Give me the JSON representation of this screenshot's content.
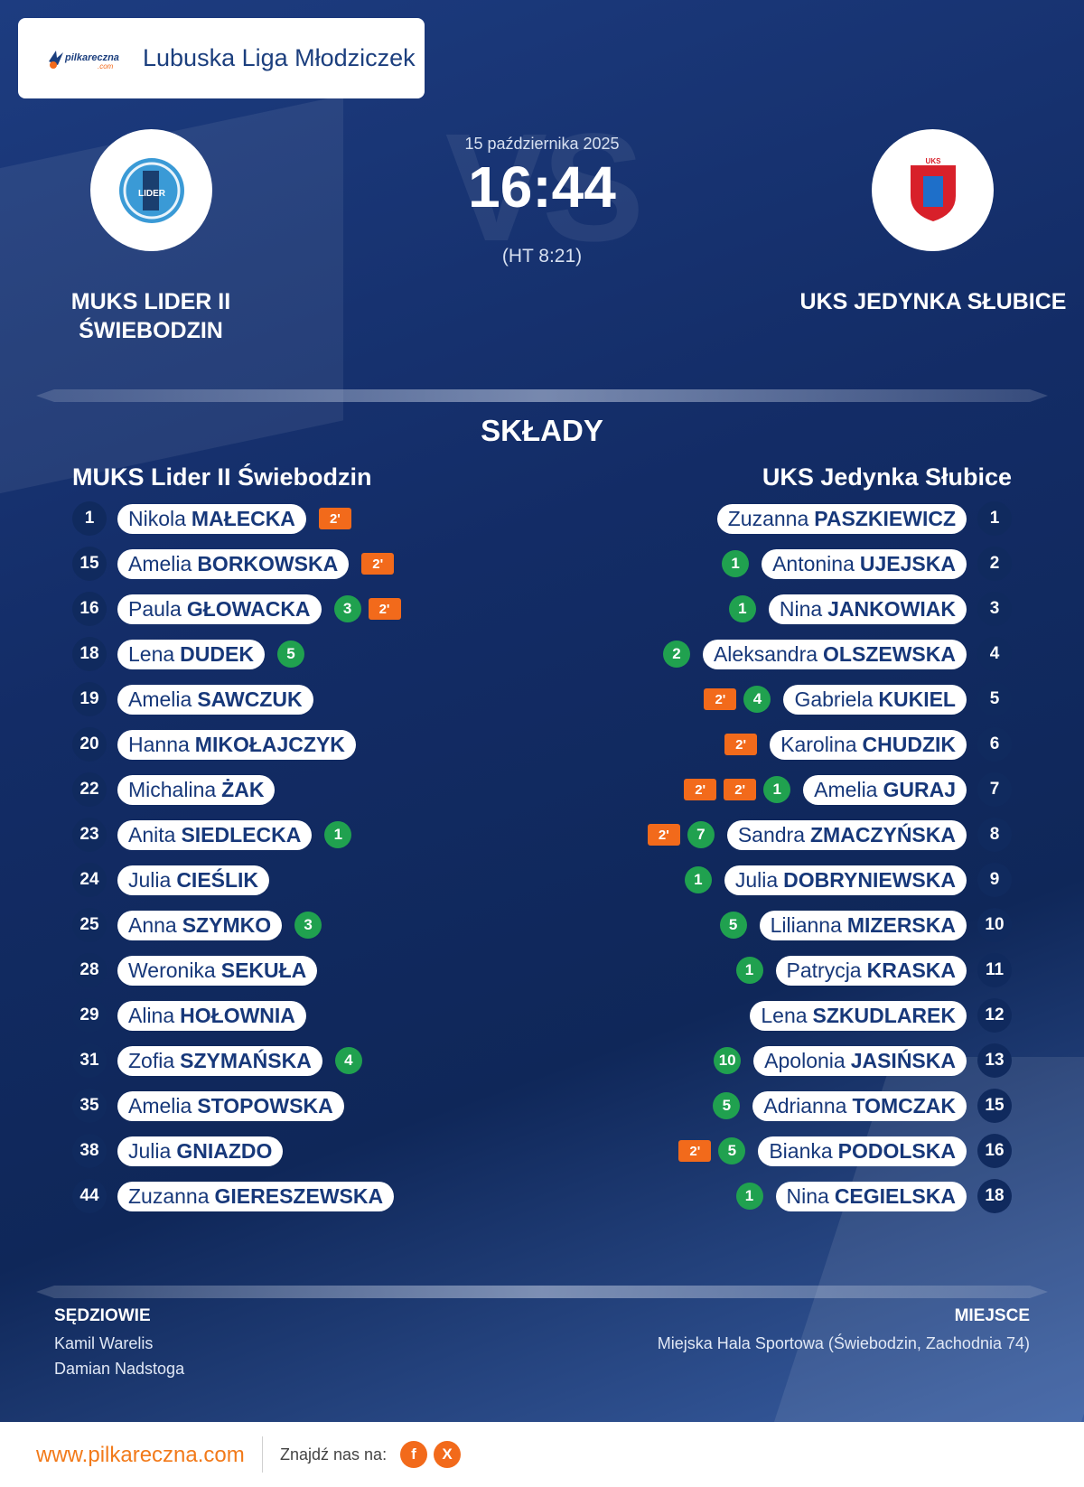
{
  "header": {
    "league": "Lubuska Liga Młodziczek",
    "logo_text": "pilkareczna",
    "logo_sub": ".com"
  },
  "match": {
    "date": "15 października 2025",
    "vs_text": "VS",
    "score": "16:44",
    "halftime": "(HT 8:21)",
    "home_team": "MUKS LIDER II ŚWIEBODZIN",
    "away_team": "UKS JEDYNKA SŁUBICE",
    "home_crest_text": "LIDER",
    "away_crest_text": "UKS"
  },
  "lineups": {
    "title": "SKŁADY",
    "home_title": "MUKS Lider II Świebodzin",
    "away_title": "UKS Jedynka Słubice",
    "home": [
      {
        "num": "1",
        "first": "Nikola",
        "last": "MAŁECKA",
        "goals": "",
        "susp": [
          "2'"
        ]
      },
      {
        "num": "15",
        "first": "Amelia",
        "last": "BORKOWSKA",
        "goals": "",
        "susp": [
          "2'"
        ]
      },
      {
        "num": "16",
        "first": "Paula",
        "last": "GŁOWACKA",
        "goals": "3",
        "susp": [
          "2'"
        ]
      },
      {
        "num": "18",
        "first": "Lena",
        "last": "DUDEK",
        "goals": "5",
        "susp": []
      },
      {
        "num": "19",
        "first": "Amelia",
        "last": "SAWCZUK",
        "goals": "",
        "susp": []
      },
      {
        "num": "20",
        "first": "Hanna",
        "last": "MIKOŁAJCZYK",
        "goals": "",
        "susp": []
      },
      {
        "num": "22",
        "first": "Michalina",
        "last": "ŻAK",
        "goals": "",
        "susp": []
      },
      {
        "num": "23",
        "first": "Anita",
        "last": "SIEDLECKA",
        "goals": "1",
        "susp": []
      },
      {
        "num": "24",
        "first": "Julia",
        "last": "CIEŚLIK",
        "goals": "",
        "susp": []
      },
      {
        "num": "25",
        "first": "Anna",
        "last": "SZYMKO",
        "goals": "3",
        "susp": []
      },
      {
        "num": "28",
        "first": "Weronika",
        "last": "SEKUŁA",
        "goals": "",
        "susp": []
      },
      {
        "num": "29",
        "first": "Alina",
        "last": "HOŁOWNIA",
        "goals": "",
        "susp": []
      },
      {
        "num": "31",
        "first": "Zofia",
        "last": "SZYMAŃSKA",
        "goals": "4",
        "susp": []
      },
      {
        "num": "35",
        "first": "Amelia",
        "last": "STOPOWSKA",
        "goals": "",
        "susp": []
      },
      {
        "num": "38",
        "first": "Julia",
        "last": "GNIAZDO",
        "goals": "",
        "susp": []
      },
      {
        "num": "44",
        "first": "Zuzanna",
        "last": "GIERESZEWSKA",
        "goals": "",
        "susp": []
      }
    ],
    "away": [
      {
        "num": "1",
        "first": "Zuzanna",
        "last": "PASZKIEWICZ",
        "goals": "",
        "susp": []
      },
      {
        "num": "2",
        "first": "Antonina",
        "last": "UJEJSKA",
        "goals": "1",
        "susp": []
      },
      {
        "num": "3",
        "first": "Nina",
        "last": "JANKOWIAK",
        "goals": "1",
        "susp": []
      },
      {
        "num": "4",
        "first": "Aleksandra",
        "last": "OLSZEWSKA",
        "goals": "2",
        "susp": []
      },
      {
        "num": "5",
        "first": "Gabriela",
        "last": "KUKIEL",
        "goals": "4",
        "susp": [
          "2'"
        ]
      },
      {
        "num": "6",
        "first": "Karolina",
        "last": "CHUDZIK",
        "goals": "",
        "susp": [
          "2'"
        ]
      },
      {
        "num": "7",
        "first": "Amelia",
        "last": "GURAJ",
        "goals": "1",
        "susp": [
          "2'",
          "2'"
        ]
      },
      {
        "num": "8",
        "first": "Sandra",
        "last": "ZMACZYŃSKA",
        "goals": "7",
        "susp": [
          "2'"
        ]
      },
      {
        "num": "9",
        "first": "Julia",
        "last": "DOBRYNIEWSKA",
        "goals": "1",
        "susp": []
      },
      {
        "num": "10",
        "first": "Lilianna",
        "last": "MIZERSKA",
        "goals": "5",
        "susp": []
      },
      {
        "num": "11",
        "first": "Patrycja",
        "last": "KRASKA",
        "goals": "1",
        "susp": []
      },
      {
        "num": "12",
        "first": "Lena",
        "last": "SZKUDLAREK",
        "goals": "",
        "susp": []
      },
      {
        "num": "13",
        "first": "Apolonia",
        "last": "JASIŃSKA",
        "goals": "10",
        "susp": []
      },
      {
        "num": "15",
        "first": "Adrianna",
        "last": "TOMCZAK",
        "goals": "5",
        "susp": []
      },
      {
        "num": "16",
        "first": "Bianka",
        "last": "PODOLSKA",
        "goals": "5",
        "susp": [
          "2'"
        ]
      },
      {
        "num": "18",
        "first": "Nina",
        "last": "CEGIELSKA",
        "goals": "1",
        "susp": []
      }
    ]
  },
  "footer": {
    "referees_label": "SĘDZIOWIE",
    "referees": [
      "Kamil Warelis",
      "Damian Nadstoga"
    ],
    "venue_label": "MIEJSCE",
    "venue": "Miejska Hala Sportowa (Świebodzin, Zachodnia 74)"
  },
  "bottom": {
    "url": "www.pilkareczna.com",
    "find_us": "Znajdź nas na:",
    "facebook_icon_text": "f",
    "x_icon_text": "X"
  },
  "colors": {
    "navy": "#132c66",
    "goal_green": "#20a14f",
    "suspension_orange": "#f26a1b",
    "text_blue": "#17387a"
  }
}
